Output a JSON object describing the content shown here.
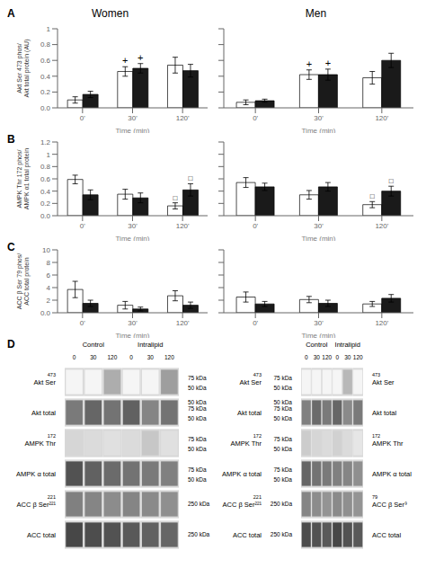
{
  "chart_data": [
    {
      "type": "bar",
      "title": "Women",
      "annotations": [
        "A"
      ],
      "xlabel": "Time (min)",
      "ylabel": "Akt Ser 473 phos/\nAkt total protein (AU)",
      "categories": [
        "0'",
        "30'",
        "120'"
      ],
      "ylim": [
        0,
        1.0
      ],
      "yticks": [
        {
          "value": 0,
          "label": "0.0"
        },
        0.2,
        0.4,
        0.6,
        0.8,
        1
      ],
      "grid": false,
      "series": [
        {
          "color": "#ffffff",
          "values": [
            0.1,
            0.46,
            0.54
          ],
          "errors": [
            0.04,
            0.06,
            0.1
          ],
          "marks": [
            null,
            "+",
            null
          ]
        },
        {
          "color": "#1a1a1a",
          "values": [
            0.17,
            0.5,
            0.47
          ],
          "errors": [
            0.04,
            0.06,
            0.08
          ],
          "marks": [
            null,
            "+",
            null
          ]
        }
      ]
    },
    {
      "type": "bar",
      "title": "Men",
      "xlabel": "Time (min)",
      "categories": [
        "0'",
        "30'",
        "120'"
      ],
      "ylim": [
        0,
        1.0
      ],
      "yticks": [
        {
          "value": 0,
          "label": "0.0"
        },
        0.2,
        0.4,
        0.6,
        0.8,
        1
      ],
      "tick_labels": "x",
      "grid": false,
      "series": [
        {
          "color": "#ffffff",
          "values": [
            0.07,
            0.42,
            0.38
          ],
          "errors": [
            0.03,
            0.06,
            0.08
          ],
          "marks": [
            null,
            "+",
            null
          ]
        },
        {
          "color": "#1a1a1a",
          "values": [
            0.09,
            0.42,
            0.6
          ],
          "errors": [
            0.02,
            0.07,
            0.09
          ],
          "marks": [
            null,
            "+",
            null
          ]
        }
      ]
    },
    {
      "type": "bar",
      "annotations": [
        "B"
      ],
      "xlabel": "Time (min)",
      "ylabel": "AMPK Thr 172 phos/\nAMPK α1 total protein",
      "categories": [
        "0'",
        "30'",
        "120'"
      ],
      "ylim": [
        0,
        1.2
      ],
      "yticks": [
        {
          "value": 0,
          "label": "0.0"
        },
        0.2,
        0.4,
        0.6,
        0.8,
        1,
        1.2
      ],
      "grid": false,
      "series": [
        {
          "color": "#ffffff",
          "values": [
            0.59,
            0.35,
            0.16
          ],
          "errors": [
            0.07,
            0.08,
            0.05
          ],
          "marks": [
            null,
            null,
            "□"
          ]
        },
        {
          "color": "#1a1a1a",
          "values": [
            0.34,
            0.29,
            0.42
          ],
          "errors": [
            0.08,
            0.08,
            0.1
          ],
          "marks": [
            null,
            null,
            "□"
          ]
        }
      ]
    },
    {
      "type": "bar",
      "xlabel": "Time (min)",
      "categories": [
        "0'",
        "30'",
        "120'"
      ],
      "ylim": [
        0,
        1.2
      ],
      "yticks": [
        {
          "value": 0,
          "label": "0.0"
        },
        0.2,
        0.4,
        0.6,
        0.8,
        1,
        1.2
      ],
      "tick_labels": "x",
      "grid": false,
      "series": [
        {
          "color": "#ffffff",
          "values": [
            0.54,
            0.34,
            0.18
          ],
          "errors": [
            0.08,
            0.07,
            0.05
          ],
          "marks": [
            null,
            null,
            "□"
          ]
        },
        {
          "color": "#1a1a1a",
          "values": [
            0.47,
            0.47,
            0.4
          ],
          "errors": [
            0.06,
            0.07,
            0.08
          ],
          "marks": [
            null,
            null,
            "□"
          ]
        }
      ]
    },
    {
      "type": "bar",
      "annotations": [
        "C"
      ],
      "xlabel": "Time (min)",
      "ylabel": "ACC β Ser 79 phos/\nACC total protein",
      "categories": [
        "0'",
        "30'",
        "120'"
      ],
      "ylim": [
        0,
        10
      ],
      "yticks": [
        {
          "value": 0,
          "label": "0.0"
        },
        2,
        4,
        6,
        8,
        10
      ],
      "grid": false,
      "series": [
        {
          "color": "#ffffff",
          "values": [
            3.7,
            1.2,
            2.7
          ],
          "errors": [
            1.3,
            0.6,
            0.8
          ]
        },
        {
          "color": "#1a1a1a",
          "values": [
            1.5,
            0.6,
            1.2
          ],
          "errors": [
            0.5,
            0.3,
            0.5
          ]
        }
      ]
    },
    {
      "type": "bar",
      "xlabel": "Time (min)",
      "categories": [
        "0'",
        "30'",
        "120'"
      ],
      "ylim": [
        0,
        10
      ],
      "yticks": [
        {
          "value": 0,
          "label": "0.0"
        },
        2,
        4,
        6,
        8,
        10
      ],
      "tick_labels": "x",
      "grid": false,
      "series": [
        {
          "color": "#ffffff",
          "values": [
            2.5,
            2.1,
            1.4
          ],
          "errors": [
            0.8,
            0.5,
            0.4
          ]
        },
        {
          "color": "#1a1a1a",
          "values": [
            1.4,
            1.5,
            2.3
          ],
          "errors": [
            0.4,
            0.5,
            0.6
          ]
        }
      ]
    },
    {
      "type": "heatmap",
      "annotations": [
        "D"
      ],
      "groups": [
        "Control",
        "Intralipid"
      ],
      "columns": [
        "0",
        "30",
        "120",
        "0",
        "30",
        "120"
      ],
      "rows": [
        "Akt Ser",
        "Akt total",
        "AMPK Thr",
        "AMPK α total",
        "ACC β Ser²²¹",
        "ACC total"
      ],
      "row_superscripts": [
        "473",
        null,
        "172",
        null,
        "221",
        null
      ],
      "kda_top": [
        "75 kDa",
        "50 kDa\n75 kDa",
        "75 kDa",
        "75 kDa",
        "250 kDa",
        "250 kDa"
      ],
      "kda_bottom": [
        "50 kDa",
        "50 kDa",
        "50 kDa",
        "50 kDa",
        null,
        null
      ],
      "cells": [
        [
          0.04,
          0.04,
          0.32,
          0.04,
          0.04,
          0.38
        ],
        [
          0.52,
          0.6,
          0.55,
          0.62,
          0.48,
          0.55
        ],
        [
          0.16,
          0.14,
          0.12,
          0.14,
          0.22,
          0.12
        ],
        [
          0.68,
          0.62,
          0.58,
          0.55,
          0.52,
          0.5
        ],
        [
          0.5,
          0.48,
          0.45,
          0.48,
          0.46,
          0.44
        ],
        [
          0.72,
          0.7,
          0.68,
          0.65,
          0.62,
          0.6
        ]
      ]
    },
    {
      "type": "heatmap",
      "groups": [
        "Control",
        "Intralipid"
      ],
      "columns": [
        "0",
        "30",
        "120",
        "0",
        "30",
        "120"
      ],
      "rows": [
        "Akt Ser",
        "Akt total",
        "AMPK Thr",
        "AMPK α total",
        "ACC β Ser²²¹",
        "ACC total"
      ],
      "row_superscripts": [
        "473",
        null,
        "172",
        null,
        "221",
        null
      ],
      "rows_right": [
        "Akt Ser",
        "Akt total",
        "AMPK Thr",
        "AMPK α total",
        "ACC β Ser⁹",
        "ACC total"
      ],
      "row_superscripts_right": [
        "473",
        null,
        "172",
        null,
        "79",
        null
      ],
      "kda_top": [
        "75 kDa",
        "50 kDa\n75 kDa",
        "75 kDa",
        "75 kDa",
        "250 kDa",
        "250 kDa"
      ],
      "kda_bottom": [
        "50 kDa",
        "50 kDa",
        "50 kDa",
        "50 kDa",
        null,
        null
      ],
      "cells": [
        [
          0.04,
          0.04,
          0.04,
          0.04,
          0.28,
          0.04
        ],
        [
          0.5,
          0.58,
          0.52,
          0.6,
          0.46,
          0.52
        ],
        [
          0.2,
          0.16,
          0.14,
          0.18,
          0.14,
          0.1
        ],
        [
          0.6,
          0.55,
          0.52,
          0.5,
          0.48,
          0.44
        ],
        [
          0.48,
          0.45,
          0.42,
          0.46,
          0.44,
          0.42
        ],
        [
          0.7,
          0.68,
          0.65,
          0.72,
          0.68,
          0.65
        ]
      ]
    }
  ]
}
